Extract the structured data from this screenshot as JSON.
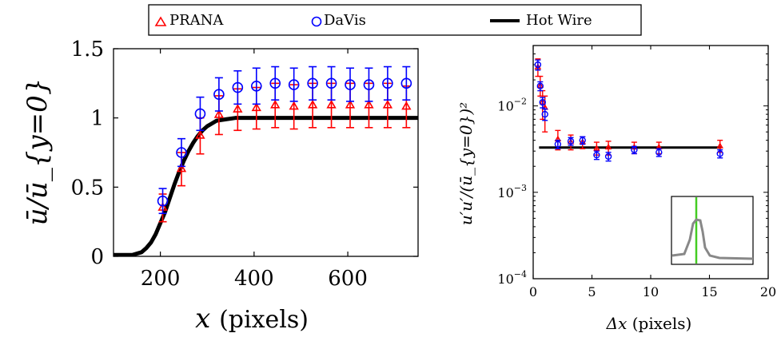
{
  "legend": {
    "entries": [
      {
        "label": "PRANA",
        "marker": "triangle",
        "color": "#ff0000"
      },
      {
        "label": "DaVis",
        "marker": "circle",
        "color": "#0000ff"
      },
      {
        "label": "Hot Wire",
        "marker": "line",
        "color": "#000000"
      }
    ]
  },
  "chart_data": [
    {
      "type": "line",
      "xlabel_var": "x",
      "xlabel_unit": "(pixels)",
      "ylabel": "ū/ū_{y=0}",
      "xlim": [
        100,
        750
      ],
      "ylim": [
        0,
        1.5
      ],
      "xticks": [
        200,
        400,
        600
      ],
      "xtick_labels": [
        "200",
        "400",
        "600"
      ],
      "yticks": [
        0,
        0.5,
        1,
        1.5
      ],
      "ytick_labels": [
        "0",
        "0.5",
        "1",
        "1.5"
      ],
      "series": [
        {
          "name": "PRANA",
          "kind": "points",
          "color": "#ff0000",
          "marker": "triangle",
          "x": [
            205,
            245,
            285,
            325,
            365,
            405,
            445,
            485,
            525,
            565,
            605,
            645,
            685,
            725
          ],
          "y": [
            0.35,
            0.63,
            0.87,
            1.02,
            1.06,
            1.07,
            1.09,
            1.08,
            1.09,
            1.09,
            1.09,
            1.09,
            1.09,
            1.08
          ],
          "err": [
            0.1,
            0.12,
            0.13,
            0.14,
            0.15,
            0.15,
            0.16,
            0.16,
            0.16,
            0.16,
            0.16,
            0.16,
            0.16,
            0.15
          ]
        },
        {
          "name": "DaVis",
          "kind": "points",
          "color": "#0000ff",
          "marker": "circle",
          "x": [
            205,
            245,
            285,
            325,
            365,
            405,
            445,
            485,
            525,
            565,
            605,
            645,
            685,
            725
          ],
          "y": [
            0.4,
            0.75,
            1.03,
            1.17,
            1.22,
            1.23,
            1.25,
            1.24,
            1.25,
            1.25,
            1.24,
            1.24,
            1.25,
            1.25
          ],
          "err": [
            0.09,
            0.1,
            0.12,
            0.12,
            0.12,
            0.13,
            0.12,
            0.12,
            0.12,
            0.12,
            0.12,
            0.12,
            0.12,
            0.12
          ]
        },
        {
          "name": "Hot Wire",
          "kind": "line",
          "color": "#000000",
          "x": [
            100,
            140,
            160,
            170,
            180,
            190,
            200,
            210,
            220,
            230,
            240,
            250,
            260,
            270,
            280,
            290,
            300,
            310,
            320,
            330,
            340,
            360,
            380,
            400,
            450,
            500,
            600,
            700,
            750
          ],
          "y": [
            0.01,
            0.01,
            0.03,
            0.06,
            0.1,
            0.16,
            0.24,
            0.32,
            0.42,
            0.52,
            0.61,
            0.69,
            0.76,
            0.82,
            0.87,
            0.91,
            0.94,
            0.96,
            0.98,
            0.985,
            0.99,
            1.0,
            1.0,
            1.0,
            1.0,
            1.0,
            1.0,
            1.0,
            1.0
          ]
        }
      ]
    },
    {
      "type": "scatter",
      "xlabel_var": "Δx",
      "xlabel_unit": "(pixels)",
      "ylabel": "u′u′/(ū_{y=0})²",
      "xlim": [
        0,
        20
      ],
      "ylim": [
        0.0001,
        0.05
      ],
      "yscale": "log",
      "xticks": [
        0,
        5,
        10,
        15,
        20
      ],
      "xtick_labels": [
        "0",
        "5",
        "10",
        "15",
        "20"
      ],
      "yticks": [
        0.0001,
        0.001,
        0.01
      ],
      "ytick_labels_base": [
        "10",
        "10",
        "10"
      ],
      "ytick_labels_exp": [
        "−4",
        "−3",
        "−2"
      ],
      "series": [
        {
          "name": "PRANA",
          "color": "#ff0000",
          "marker": "triangle",
          "x": [
            0.4,
            0.6,
            0.8,
            1.0,
            2.1,
            3.2,
            4.2,
            5.4,
            6.4,
            8.6,
            10.7,
            15.9
          ],
          "y": [
            0.028,
            0.017,
            0.011,
            0.0095,
            0.0041,
            0.0038,
            0.0038,
            0.0032,
            0.0033,
            0.0033,
            0.0033,
            0.0034
          ],
          "err_lo": [
            0.022,
            0.013,
            0.007,
            0.005,
            0.0031,
            0.0031,
            0.0032,
            0.0027,
            0.0027,
            0.0028,
            0.0028,
            0.0029
          ],
          "err_hi": [
            0.035,
            0.022,
            0.015,
            0.013,
            0.0052,
            0.0046,
            0.0044,
            0.0038,
            0.0039,
            0.0038,
            0.0038,
            0.004
          ]
        },
        {
          "name": "DaVis",
          "color": "#0000ff",
          "marker": "circle",
          "x": [
            0.4,
            0.6,
            0.8,
            1.0,
            2.1,
            3.2,
            4.2,
            5.4,
            6.4,
            8.6,
            10.7,
            15.9
          ],
          "y": [
            0.03,
            0.017,
            0.011,
            0.008,
            0.0036,
            0.0039,
            0.004,
            0.0027,
            0.0026,
            0.0031,
            0.0029,
            0.0028
          ],
          "err_lo": [
            0.026,
            0.015,
            0.0095,
            0.0068,
            0.0032,
            0.0035,
            0.0036,
            0.0024,
            0.0023,
            0.0028,
            0.0026,
            0.0025
          ],
          "err_hi": [
            0.034,
            0.019,
            0.0125,
            0.0092,
            0.004,
            0.0043,
            0.0044,
            0.003,
            0.0029,
            0.0034,
            0.0032,
            0.0031
          ]
        },
        {
          "name": "Hot Wire",
          "color": "#000000",
          "kind": "line",
          "x": [
            0.5,
            16
          ],
          "y": [
            0.0033,
            0.0033
          ]
        }
      ],
      "inset": {
        "curve_color": "#888888",
        "marker_color": "#44cc22"
      }
    }
  ]
}
